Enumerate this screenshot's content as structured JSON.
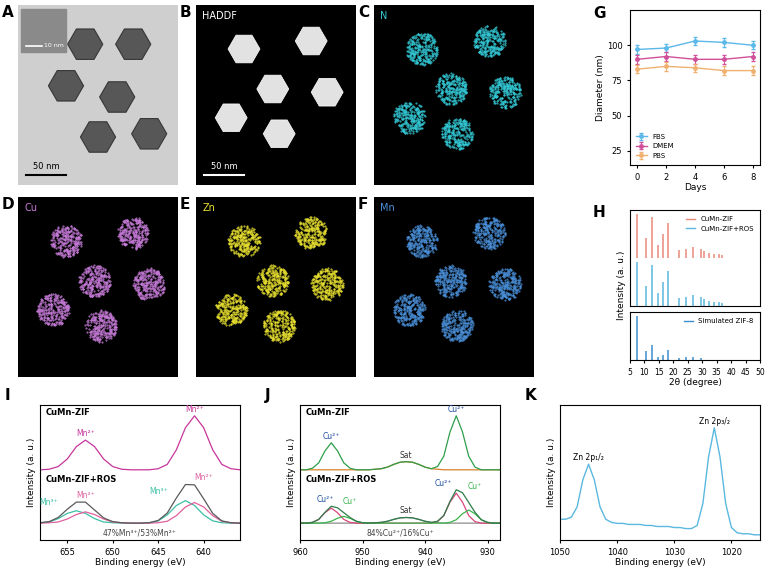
{
  "image_panels": [
    {
      "panel": "A",
      "scale_bar": "50 nm",
      "inset_scale_bar": "10 nm"
    },
    {
      "panel": "B",
      "label": "HADDF",
      "scale_bar": "50 nm"
    },
    {
      "panel": "C",
      "label": "N",
      "color": "#33c9d6"
    },
    {
      "panel": "D",
      "label": "Cu",
      "color": "#c77bd9"
    },
    {
      "panel": "E",
      "label": "Zn",
      "color": "#e8e030"
    },
    {
      "panel": "F",
      "label": "Mn",
      "color": "#4a90d9"
    }
  ],
  "chart_data": [
    {
      "panel": "G",
      "type": "line",
      "xlabel": "Days",
      "ylabel": "Diameter (nm)",
      "x": [
        0,
        2,
        4,
        6,
        8
      ],
      "xlim": [
        -0.5,
        8.5
      ],
      "xticks": [
        0,
        2,
        4,
        6,
        8
      ],
      "ylim": [
        15,
        125
      ],
      "yticks": [
        25,
        50,
        75,
        100
      ],
      "legend": "lower left",
      "marker": "o",
      "series": [
        {
          "name": "FBS",
          "color": "#5bb8e8",
          "values": [
            97,
            98,
            103,
            102,
            100
          ],
          "errors": [
            3,
            3,
            3,
            3,
            3
          ]
        },
        {
          "name": "DMEM",
          "color": "#d0509a",
          "values": [
            90,
            92,
            90,
            90,
            92
          ],
          "errors": [
            3,
            3,
            3,
            3,
            3
          ]
        },
        {
          "name": "PBS",
          "color": "#f0b070",
          "values": [
            83,
            85,
            84,
            82,
            82
          ],
          "errors": [
            3,
            3,
            3,
            3,
            3
          ]
        }
      ]
    },
    {
      "panel": "H",
      "type": "stem",
      "xlabel": "2θ (degree)",
      "ylabel": "Intensity (a. u.)",
      "xlim": [
        5,
        50
      ],
      "xticks": [
        5,
        10,
        15,
        20,
        25,
        30,
        35,
        40,
        45,
        50
      ],
      "ylim": [
        0,
        110
      ],
      "yticks": [],
      "tick_labels": "x",
      "legend": "upper right",
      "series": [
        {
          "name": "CuMn-ZIF",
          "color": "#e8897a",
          "x": [
            7.3,
            10.4,
            12.7,
            14.7,
            16.4,
            18.0,
            22.1,
            24.5,
            26.7,
            29.6,
            30.6,
            32.4,
            34.0,
            35.7,
            37.0
          ],
          "values": [
            100,
            45,
            95,
            30,
            55,
            80,
            18,
            20,
            25,
            20,
            15,
            12,
            10,
            10,
            8
          ]
        },
        {
          "name": "CuMn-ZIF+ROS",
          "color": "#5bb8e0",
          "x": [
            7.3,
            10.4,
            12.7,
            14.7,
            16.4,
            18.0,
            22.1,
            24.5,
            26.7,
            29.6,
            30.6,
            32.4,
            34.0,
            35.7,
            37.0
          ],
          "values": [
            100,
            45,
            95,
            30,
            55,
            80,
            18,
            20,
            25,
            20,
            15,
            12,
            10,
            10,
            8
          ]
        },
        {
          "name": "Simulated ZIF-8",
          "color": "#3a8fd0",
          "x": [
            7.3,
            10.4,
            12.7,
            14.7,
            16.4,
            18.0,
            22.1,
            24.5,
            26.7,
            29.6
          ],
          "values": [
            100,
            20,
            35,
            8,
            12,
            22,
            5,
            6,
            7,
            5
          ]
        }
      ]
    },
    {
      "panel": "I",
      "type": "line",
      "xlabel": "Binding energy (eV)",
      "ylabel": "Intensity (a. u.)",
      "x": [
        636,
        637,
        638,
        639,
        640,
        641,
        642,
        643,
        644,
        645,
        646,
        647,
        648,
        649,
        650,
        651,
        652,
        653,
        654,
        655,
        656,
        657,
        658
      ],
      "xlim": [
        658,
        636
      ],
      "xticks": [
        655,
        650,
        645,
        640
      ],
      "tick_labels": "x",
      "spectra": [
        {
          "title": "CuMn-ZIF",
          "ylim": [
            0,
            125
          ],
          "yticks": [],
          "series": [
            {
              "color": "#c8359b",
              "values": [
                5,
                7,
                15,
                42,
                83,
                105,
                83,
                42,
                15,
                7,
                5,
                5,
                5,
                6,
                11,
                25,
                48,
                60,
                48,
                25,
                11,
                6,
                5
              ]
            }
          ],
          "annotations": [
            {
              "text": "Mn²⁺",
              "x": 653,
              "color": "#c8359b"
            },
            {
              "text": "Mn²⁺",
              "x": 641,
              "color": "#c8359b"
            }
          ]
        },
        {
          "title": "CuMn-ZIF+ROS",
          "ylim": [
            -40,
            140
          ],
          "yticks": [],
          "note": "47%Mn³⁺/53%Mn²⁺",
          "series": [
            {
              "color": "#3cbfa5",
              "values": [
                5,
                5,
                6,
                11,
                27,
                52,
                65,
                52,
                27,
                11,
                6,
                5,
                5,
                5,
                6,
                8,
                17,
                31,
                38,
                31,
                17,
                8,
                6
              ]
            },
            {
              "color": "#e0609f",
              "values": [
                5,
                6,
                10,
                25,
                48,
                60,
                48,
                25,
                10,
                6,
                5,
                5,
                5,
                6,
                8,
                16,
                28,
                35,
                28,
                16,
                8,
                6,
                5
              ]
            },
            {
              "color": "#5a5a5a",
              "values": [
                5,
                6,
                11,
                31,
                70,
                107,
                108,
                72,
                32,
                12,
                6,
                5,
                5,
                6,
                9,
                19,
                40,
                61,
                61,
                42,
                20,
                9,
                6
              ]
            }
          ],
          "annotations": [
            {
              "text": "Mn³⁺",
              "x": 657,
              "color": "#3cbfa5"
            },
            {
              "text": "Mn²⁺",
              "x": 653,
              "color": "#e0609f"
            },
            {
              "text": "Mn³⁺",
              "x": 645,
              "color": "#3cbfa5"
            },
            {
              "text": "Mn²⁺",
              "x": 640,
              "color": "#e0609f"
            }
          ]
        }
      ]
    },
    {
      "panel": "J",
      "type": "line",
      "xlabel": "Binding energy (eV)",
      "ylabel": "Intensity (a. u.)",
      "x": [
        928,
        929,
        930,
        931,
        932,
        933,
        934,
        935,
        936,
        937,
        938,
        939,
        940,
        941,
        942,
        943,
        944,
        945,
        946,
        947,
        948,
        949,
        950,
        951,
        952,
        953,
        954,
        955,
        956,
        957,
        958,
        959,
        960
      ],
      "xlim": [
        960,
        928
      ],
      "xticks": [
        960,
        950,
        940,
        930
      ],
      "tick_labels": "x",
      "spectra": [
        {
          "title": "CuMn-ZIF",
          "ylim": [
            0,
            125
          ],
          "yticks": [],
          "series": [
            {
              "color": "#d9822b",
              "values": [
                5,
                5,
                5,
                5,
                5,
                5,
                5,
                5,
                5,
                5,
                6,
                7,
                10,
                15,
                19,
                20,
                19,
                15,
                10,
                7,
                6,
                5,
                5,
                5,
                5,
                5,
                5,
                5,
                5,
                5,
                5,
                5,
                5
              ]
            },
            {
              "color": "#2e9e4a",
              "values": [
                5,
                5,
                5,
                5,
                10,
                30,
                75,
                105,
                75,
                30,
                11,
                7,
                10,
                15,
                19,
                20,
                19,
                15,
                10,
                7,
                6,
                5,
                5,
                5,
                8,
                18,
                40,
                55,
                40,
                18,
                8,
                5,
                5
              ]
            }
          ],
          "annotations": [
            {
              "text": "Cu²⁺",
              "x": 955,
              "color": "#1f4ea1"
            },
            {
              "text": "Sat",
              "x": 943,
              "color": "#333333"
            },
            {
              "text": "Cu²⁺",
              "x": 935,
              "color": "#1f4ea1"
            }
          ]
        },
        {
          "title": "CuMn-ZIF+ROS",
          "ylim": [
            -40,
            140
          ],
          "yticks": [],
          "note": "84%Cu²⁺/16%Cu⁺",
          "series": [
            {
              "color": "#8c8c8c",
              "values": [
                5,
                5,
                5,
                5,
                5,
                5,
                5,
                5,
                5,
                5,
                6,
                7,
                10,
                15,
                19,
                20,
                19,
                15,
                10,
                7,
                6,
                5,
                5,
                5,
                5,
                5,
                5,
                5,
                5,
                5,
                5,
                5,
                5
              ]
            },
            {
              "color": "#d9477a",
              "values": [
                5,
                5,
                5,
                5,
                9,
                25,
                61,
                85,
                61,
                25,
                9,
                5,
                5,
                5,
                5,
                5,
                5,
                5,
                5,
                5,
                5,
                5,
                5,
                5,
                7,
                15,
                33,
                45,
                33,
                15,
                7,
                5,
                5
              ]
            },
            {
              "color": "#39b54a",
              "values": [
                5,
                5,
                7,
                14,
                30,
                40,
                30,
                14,
                7,
                5,
                5,
                5,
                5,
                5,
                5,
                5,
                5,
                5,
                5,
                5,
                5,
                5,
                6,
                10,
                18,
                23,
                18,
                10,
                6,
                5,
                5,
                5,
                5
              ]
            },
            {
              "color": "#2e7d4a",
              "values": [
                5,
                5,
                7,
                14,
                34,
                60,
                86,
                94,
                63,
                25,
                10,
                7,
                10,
                15,
                19,
                20,
                19,
                15,
                10,
                7,
                6,
                5,
                6,
                10,
                20,
                33,
                46,
                50,
                34,
                15,
                7,
                5,
                5
              ]
            }
          ],
          "annotations": [
            {
              "text": "Cu²⁺",
              "x": 956,
              "color": "#1f4ea1"
            },
            {
              "text": "Cu⁺",
              "x": 952,
              "color": "#39b54a"
            },
            {
              "text": "Sat",
              "x": 943,
              "color": "#333333"
            },
            {
              "text": "Cu²⁺",
              "x": 937,
              "color": "#1f4ea1"
            },
            {
              "text": "Cu⁺",
              "x": 932,
              "color": "#39b54a"
            }
          ]
        }
      ]
    },
    {
      "panel": "K",
      "type": "line",
      "xlabel": "Binding energy (eV)",
      "ylabel": "Intensity (a. u.)",
      "x": [
        1015,
        1016,
        1017,
        1018,
        1019,
        1020,
        1021,
        1022,
        1023,
        1024,
        1025,
        1026,
        1027,
        1028,
        1029,
        1030,
        1031,
        1032,
        1033,
        1034,
        1035,
        1036,
        1037,
        1038,
        1039,
        1040,
        1041,
        1042,
        1043,
        1044,
        1045,
        1046,
        1047,
        1048,
        1049,
        1050
      ],
      "xlim": [
        1050,
        1015
      ],
      "xticks": [
        1050,
        1040,
        1030,
        1020
      ],
      "ylim": [
        0,
        130
      ],
      "yticks": [],
      "tick_labels": "x",
      "series": [
        {
          "color": "#5bb8e0",
          "values": [
            5,
            5,
            6,
            6,
            7,
            12,
            35,
            80,
            108,
            80,
            35,
            14,
            11,
            11,
            12,
            12,
            13,
            13,
            13,
            14,
            14,
            15,
            15,
            15,
            16,
            16,
            17,
            20,
            32,
            58,
            73,
            58,
            32,
            22,
            20,
            20
          ]
        }
      ],
      "annotations": [
        {
          "text": "Zn 2p₁/₂",
          "x": 1045,
          "color": "#000000"
        },
        {
          "text": "Zn 2p₃/₂",
          "x": 1023,
          "color": "#000000"
        }
      ]
    }
  ]
}
